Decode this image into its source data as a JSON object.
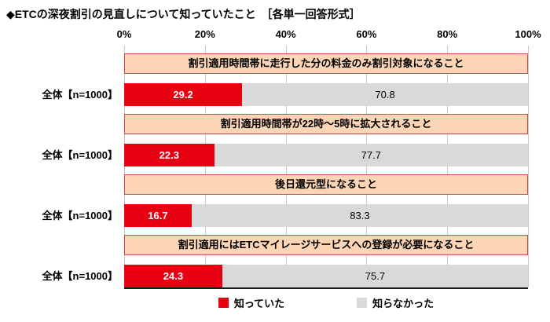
{
  "title": "◆ETCの深夜割引の見直しについて知っていたこと　［各単一回答形式］",
  "row_label": "全体【n=1000】",
  "colors": {
    "knew": "#E60012",
    "did_not_know": "#D9D9D9",
    "header_fill": "#FBD5B5",
    "header_border": "#C0504D",
    "gridline": "#C9C9C9"
  },
  "legend": {
    "knew": "知っていた",
    "did_not_know": "知らなかった"
  },
  "chart_data": {
    "type": "bar",
    "subtype": "horizontal-stacked",
    "title": "◆ETCの深夜割引の見直しについて知っていたこと",
    "answer_format_note": "［各単一回答形式］",
    "categories": [
      "割引適用時間帯に走行した分の料金のみ割引対象になること",
      "割引適用時間帯が22時～5時に拡大されること",
      "後日還元型になること",
      "割引適用にはETCマイレージサービスへの登録が必要になること"
    ],
    "row_label": "全体【n=1000】",
    "series": [
      {
        "name": "知っていた",
        "color": "#E60012",
        "values": [
          29.2,
          22.3,
          16.7,
          24.3
        ]
      },
      {
        "name": "知らなかった",
        "color": "#D9D9D9",
        "values": [
          70.8,
          77.7,
          83.3,
          75.7
        ]
      }
    ],
    "xlim": [
      0,
      100
    ],
    "x_ticks": [
      "0%",
      "20%",
      "40%",
      "60%",
      "80%",
      "100%"
    ],
    "grid": "vertical-every-20pct",
    "legend_position": "bottom"
  }
}
